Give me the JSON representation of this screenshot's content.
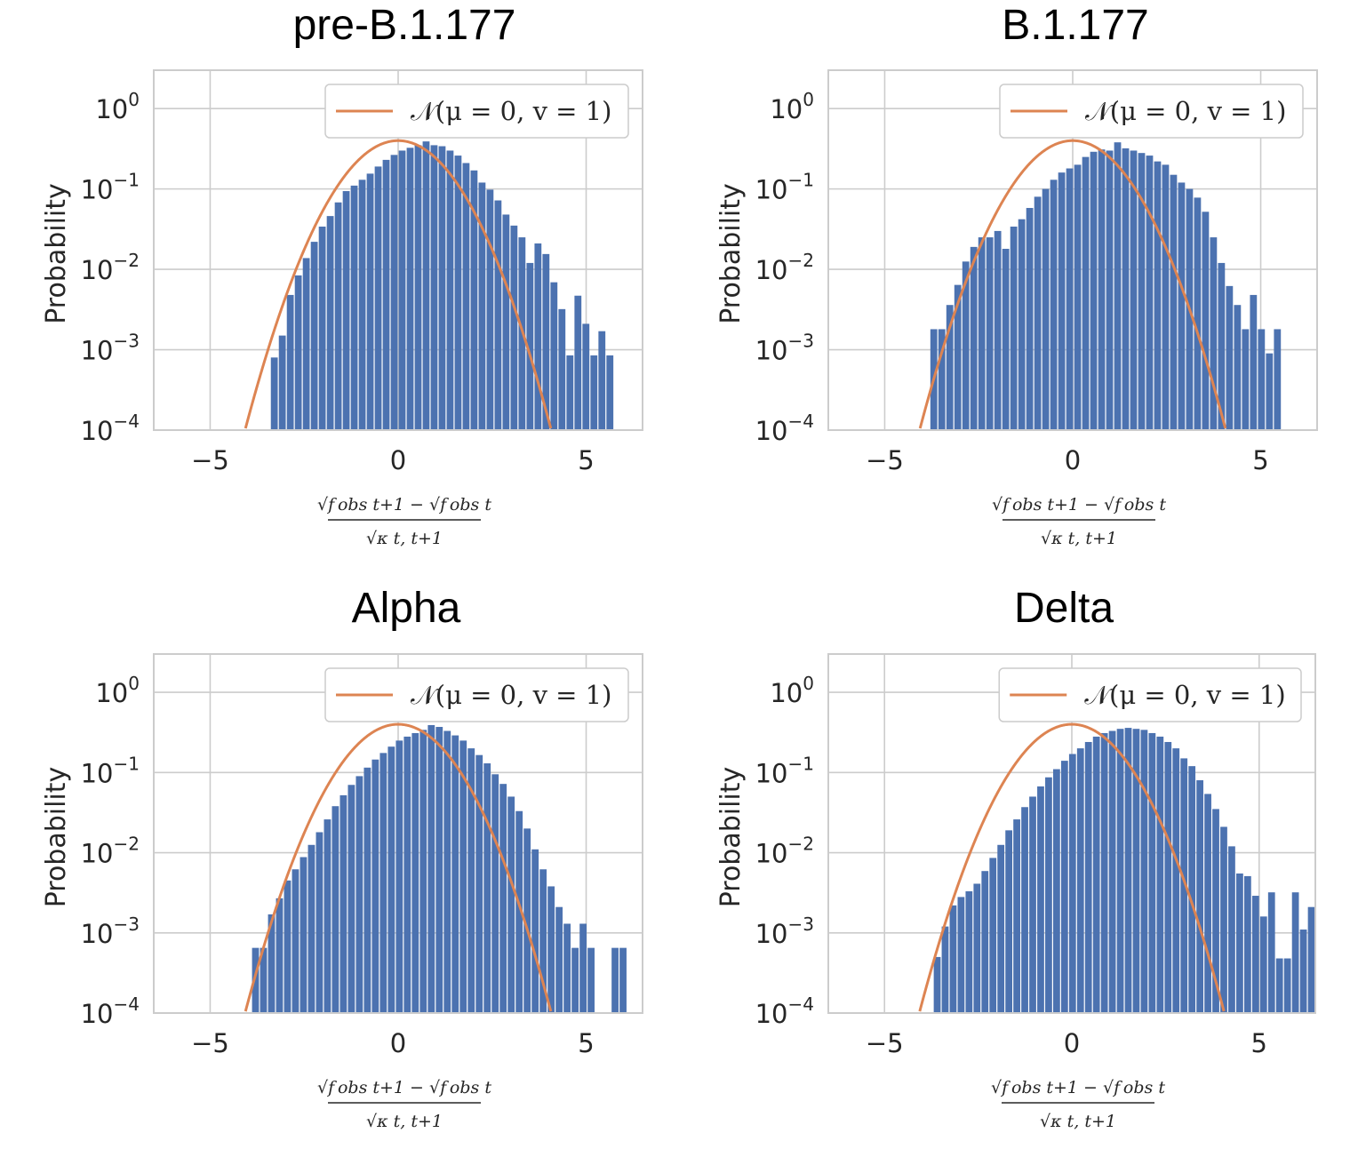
{
  "colors": {
    "bar": "#4c72b0",
    "curve": "#dd8452",
    "grid": "#cccccc",
    "text": "#262626"
  },
  "chart_data": [
    {
      "type": "bar",
      "title": "pre-B.1.177",
      "ylabel": "Probability",
      "xlabel": "(√f^obs_{t+1} − √f^obs_t) / √κ_{t,t+1}",
      "xlim": [
        -6.5,
        6.5
      ],
      "ylim": [
        0.0001,
        3
      ],
      "yscale": "log",
      "xticks": [
        "−5",
        "0",
        "5"
      ],
      "yticks": [
        "10^0",
        "10^-1",
        "10^-2",
        "10^-3",
        "10^-4"
      ],
      "legend": {
        "label": "𝒩(μ = 0, v = 1)",
        "position": "upper right"
      },
      "grid": true,
      "bins": {
        "start": -3.4,
        "width": 0.2125
      },
      "values": [
        0.0008,
        0.0015,
        0.0048,
        0.0084,
        0.0138,
        0.022,
        0.034,
        0.046,
        0.068,
        0.094,
        0.11,
        0.13,
        0.155,
        0.19,
        0.23,
        0.265,
        0.3,
        0.325,
        0.35,
        0.39,
        0.35,
        0.34,
        0.3,
        0.26,
        0.21,
        0.17,
        0.12,
        0.098,
        0.072,
        0.048,
        0.035,
        0.025,
        0.012,
        0.021,
        0.0155,
        0.0069,
        0.0032,
        0.00085,
        0.0047,
        0.0021,
        0.00085,
        0.0017,
        0.00085
      ],
      "series": [
        {
          "name": "𝒩(μ = 0, v = 1)",
          "mu": 0,
          "v": 1
        }
      ]
    },
    {
      "type": "bar",
      "title": "B.1.177",
      "ylabel": "Probability",
      "xlabel": "(√f^obs_{t+1} − √f^obs_t) / √κ_{t,t+1}",
      "xlim": [
        -6.5,
        6.5
      ],
      "ylim": [
        0.0001,
        3
      ],
      "yscale": "log",
      "xticks": [
        "−5",
        "0",
        "5"
      ],
      "yticks": [
        "10^0",
        "10^-1",
        "10^-2",
        "10^-3",
        "10^-4"
      ],
      "legend": {
        "label": "𝒩(μ = 0, v = 1)",
        "position": "upper right"
      },
      "grid": true,
      "bins": {
        "start": -3.8,
        "width": 0.2125
      },
      "values": [
        0.0018,
        0.0018,
        0.0036,
        0.0064,
        0.0125,
        0.019,
        0.025,
        0.025,
        0.03,
        0.018,
        0.034,
        0.042,
        0.058,
        0.08,
        0.1,
        0.13,
        0.16,
        0.18,
        0.2,
        0.25,
        0.29,
        0.31,
        0.3,
        0.38,
        0.32,
        0.3,
        0.28,
        0.26,
        0.22,
        0.2,
        0.15,
        0.12,
        0.1,
        0.078,
        0.052,
        0.025,
        0.012,
        0.0062,
        0.0036,
        0.0018,
        0.0048,
        0.0018,
        0.0009,
        0.0018
      ],
      "series": [
        {
          "name": "𝒩(μ = 0, v = 1)",
          "mu": 0,
          "v": 1
        }
      ]
    },
    {
      "type": "bar",
      "title": "Alpha",
      "ylabel": "Probability",
      "xlabel": "(√f^obs_{t+1} − √f^obs_t) / √κ_{t,t+1}",
      "xlim": [
        -6.5,
        6.5
      ],
      "ylim": [
        0.0001,
        3
      ],
      "yscale": "log",
      "xticks": [
        "−5",
        "0",
        "5"
      ],
      "yticks": [
        "10^0",
        "10^-1",
        "10^-2",
        "10^-3",
        "10^-4"
      ],
      "legend": {
        "label": "𝒩(μ = 0, v = 1)",
        "position": "upper right"
      },
      "grid": true,
      "bins": {
        "start": -3.9,
        "width": 0.2125
      },
      "values": [
        0.00065,
        0.00065,
        0.0017,
        0.0027,
        0.0045,
        0.0062,
        0.0088,
        0.0125,
        0.018,
        0.026,
        0.038,
        0.052,
        0.07,
        0.09,
        0.115,
        0.145,
        0.175,
        0.21,
        0.25,
        0.28,
        0.31,
        0.34,
        0.39,
        0.37,
        0.33,
        0.29,
        0.25,
        0.2,
        0.165,
        0.13,
        0.095,
        0.072,
        0.05,
        0.033,
        0.02,
        0.011,
        0.0062,
        0.0038,
        0.0021,
        0.0013,
        0.00065,
        0.0013,
        0.00065,
        0.0,
        0.0,
        0.00065,
        0.00065
      ],
      "series": [
        {
          "name": "𝒩(μ = 0, v = 1)",
          "mu": 0,
          "v": 1
        }
      ]
    },
    {
      "type": "bar",
      "title": "Delta",
      "ylabel": "Probability",
      "xlabel": "(√f^obs_{t+1} − √f^obs_t) / √κ_{t,t+1}",
      "xlim": [
        -6.5,
        6.5
      ],
      "ylim": [
        0.0001,
        3
      ],
      "yscale": "log",
      "xticks": [
        "−5",
        "0",
        "5"
      ],
      "yticks": [
        "10^0",
        "10^-1",
        "10^-2",
        "10^-3",
        "10^-4"
      ],
      "legend": {
        "label": "𝒩(μ = 0, v = 1)",
        "position": "upper right"
      },
      "grid": true,
      "bins": {
        "start": -3.7,
        "width": 0.2125
      },
      "values": [
        0.0005,
        0.0012,
        0.0022,
        0.0028,
        0.0033,
        0.0041,
        0.0059,
        0.0086,
        0.0125,
        0.019,
        0.026,
        0.037,
        0.05,
        0.067,
        0.087,
        0.11,
        0.14,
        0.17,
        0.2,
        0.24,
        0.28,
        0.31,
        0.33,
        0.35,
        0.36,
        0.35,
        0.34,
        0.31,
        0.28,
        0.24,
        0.2,
        0.15,
        0.12,
        0.08,
        0.054,
        0.035,
        0.021,
        0.012,
        0.0055,
        0.0051,
        0.0029,
        0.0016,
        0.0032,
        0.00048,
        0.00048,
        0.0032,
        0.0011,
        0.0021,
        0.0
      ],
      "series": [
        {
          "name": "𝒩(μ = 0, v = 1)",
          "mu": 0,
          "v": 1
        }
      ]
    }
  ]
}
